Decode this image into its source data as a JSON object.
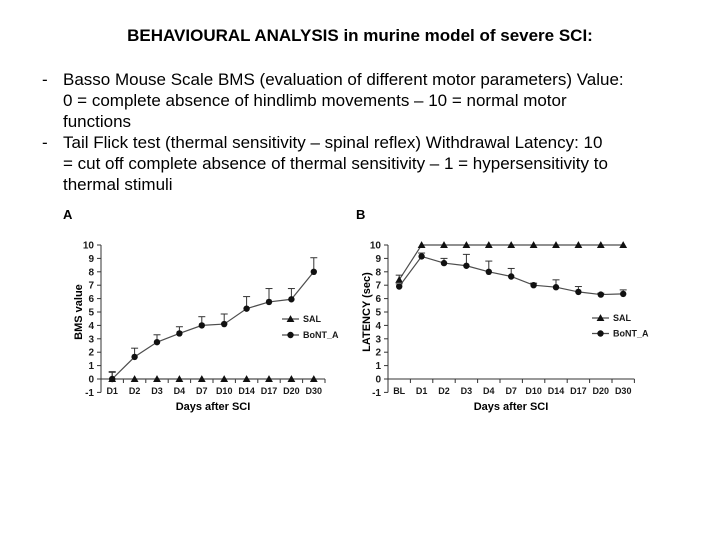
{
  "slide": {
    "title": "BEHAVIOURAL ANALYSIS in murine model of severe SCI:",
    "bullets": [
      {
        "marker": "-",
        "lines": [
          "Basso Mouse Scale BMS (evaluation of different motor parameters) Value:",
          "0 = complete absence of hindlimb movements – 10 = normal motor",
          "functions"
        ]
      },
      {
        "marker": "-",
        "lines": [
          "Tail Flick test (thermal sensitivity – spinal reflex) Withdrawal Latency: 10",
          "= cut off complete absence of thermal sensitivity – 1 = hypersensitivity to",
          "thermal stimuli"
        ]
      }
    ]
  },
  "chart_data": [
    {
      "type": "line",
      "panel_label": "A",
      "categories": [
        "D1",
        "D2",
        "D3",
        "D4",
        "D7",
        "D10",
        "D14",
        "D17",
        "D20",
        "D30"
      ],
      "series": [
        {
          "name": "SAL",
          "marker": "triangle",
          "values": [
            0,
            0,
            0,
            0,
            0,
            0,
            0,
            0,
            0,
            0
          ],
          "errors_up": [
            0.5,
            0,
            0,
            0,
            0,
            0,
            0,
            0,
            0,
            0
          ]
        },
        {
          "name": "BoNT_A",
          "marker": "circle",
          "values": [
            0,
            1.65,
            2.75,
            3.4,
            4.0,
            4.1,
            5.25,
            5.75,
            5.95,
            8.0
          ],
          "errors_up": [
            0.55,
            0.65,
            0.55,
            0.5,
            0.65,
            0.75,
            0.9,
            1.0,
            0.8,
            1.05
          ]
        }
      ],
      "xlabel": "Days after SCI",
      "ylabel": "BMS value",
      "ylim": [
        -1,
        10
      ],
      "yticks": [
        10,
        9,
        8,
        7,
        6,
        5,
        4,
        3,
        2,
        1,
        0,
        -1
      ],
      "legend_position": "right-inside",
      "grid": false
    },
    {
      "type": "line",
      "panel_label": "B",
      "categories": [
        "BL",
        "D1",
        "D2",
        "D3",
        "D4",
        "D7",
        "D10",
        "D14",
        "D17",
        "D20",
        "D30"
      ],
      "series": [
        {
          "name": "SAL",
          "marker": "triangle",
          "values": [
            7.4,
            10,
            10,
            10,
            10,
            10,
            10,
            10,
            10,
            10,
            10
          ],
          "errors_up": [
            0.35,
            0,
            0,
            0,
            0,
            0,
            0,
            0,
            0,
            0,
            0
          ]
        },
        {
          "name": "BoNT_A",
          "marker": "circle",
          "values": [
            6.9,
            9.15,
            8.65,
            8.45,
            8.0,
            7.65,
            7.0,
            6.85,
            6.5,
            6.3,
            6.35
          ],
          "errors_up": [
            0.2,
            0.25,
            0.35,
            0.85,
            0.8,
            0.6,
            0.15,
            0.55,
            0.4,
            0.1,
            0.3
          ]
        }
      ],
      "xlabel": "Days after SCI",
      "ylabel": "LATENCY  (sec)",
      "ylim": [
        -1,
        10
      ],
      "yticks": [
        10,
        9,
        8,
        7,
        6,
        5,
        4,
        3,
        2,
        1,
        0,
        -1
      ],
      "legend_position": "right-inside",
      "grid": false
    }
  ]
}
